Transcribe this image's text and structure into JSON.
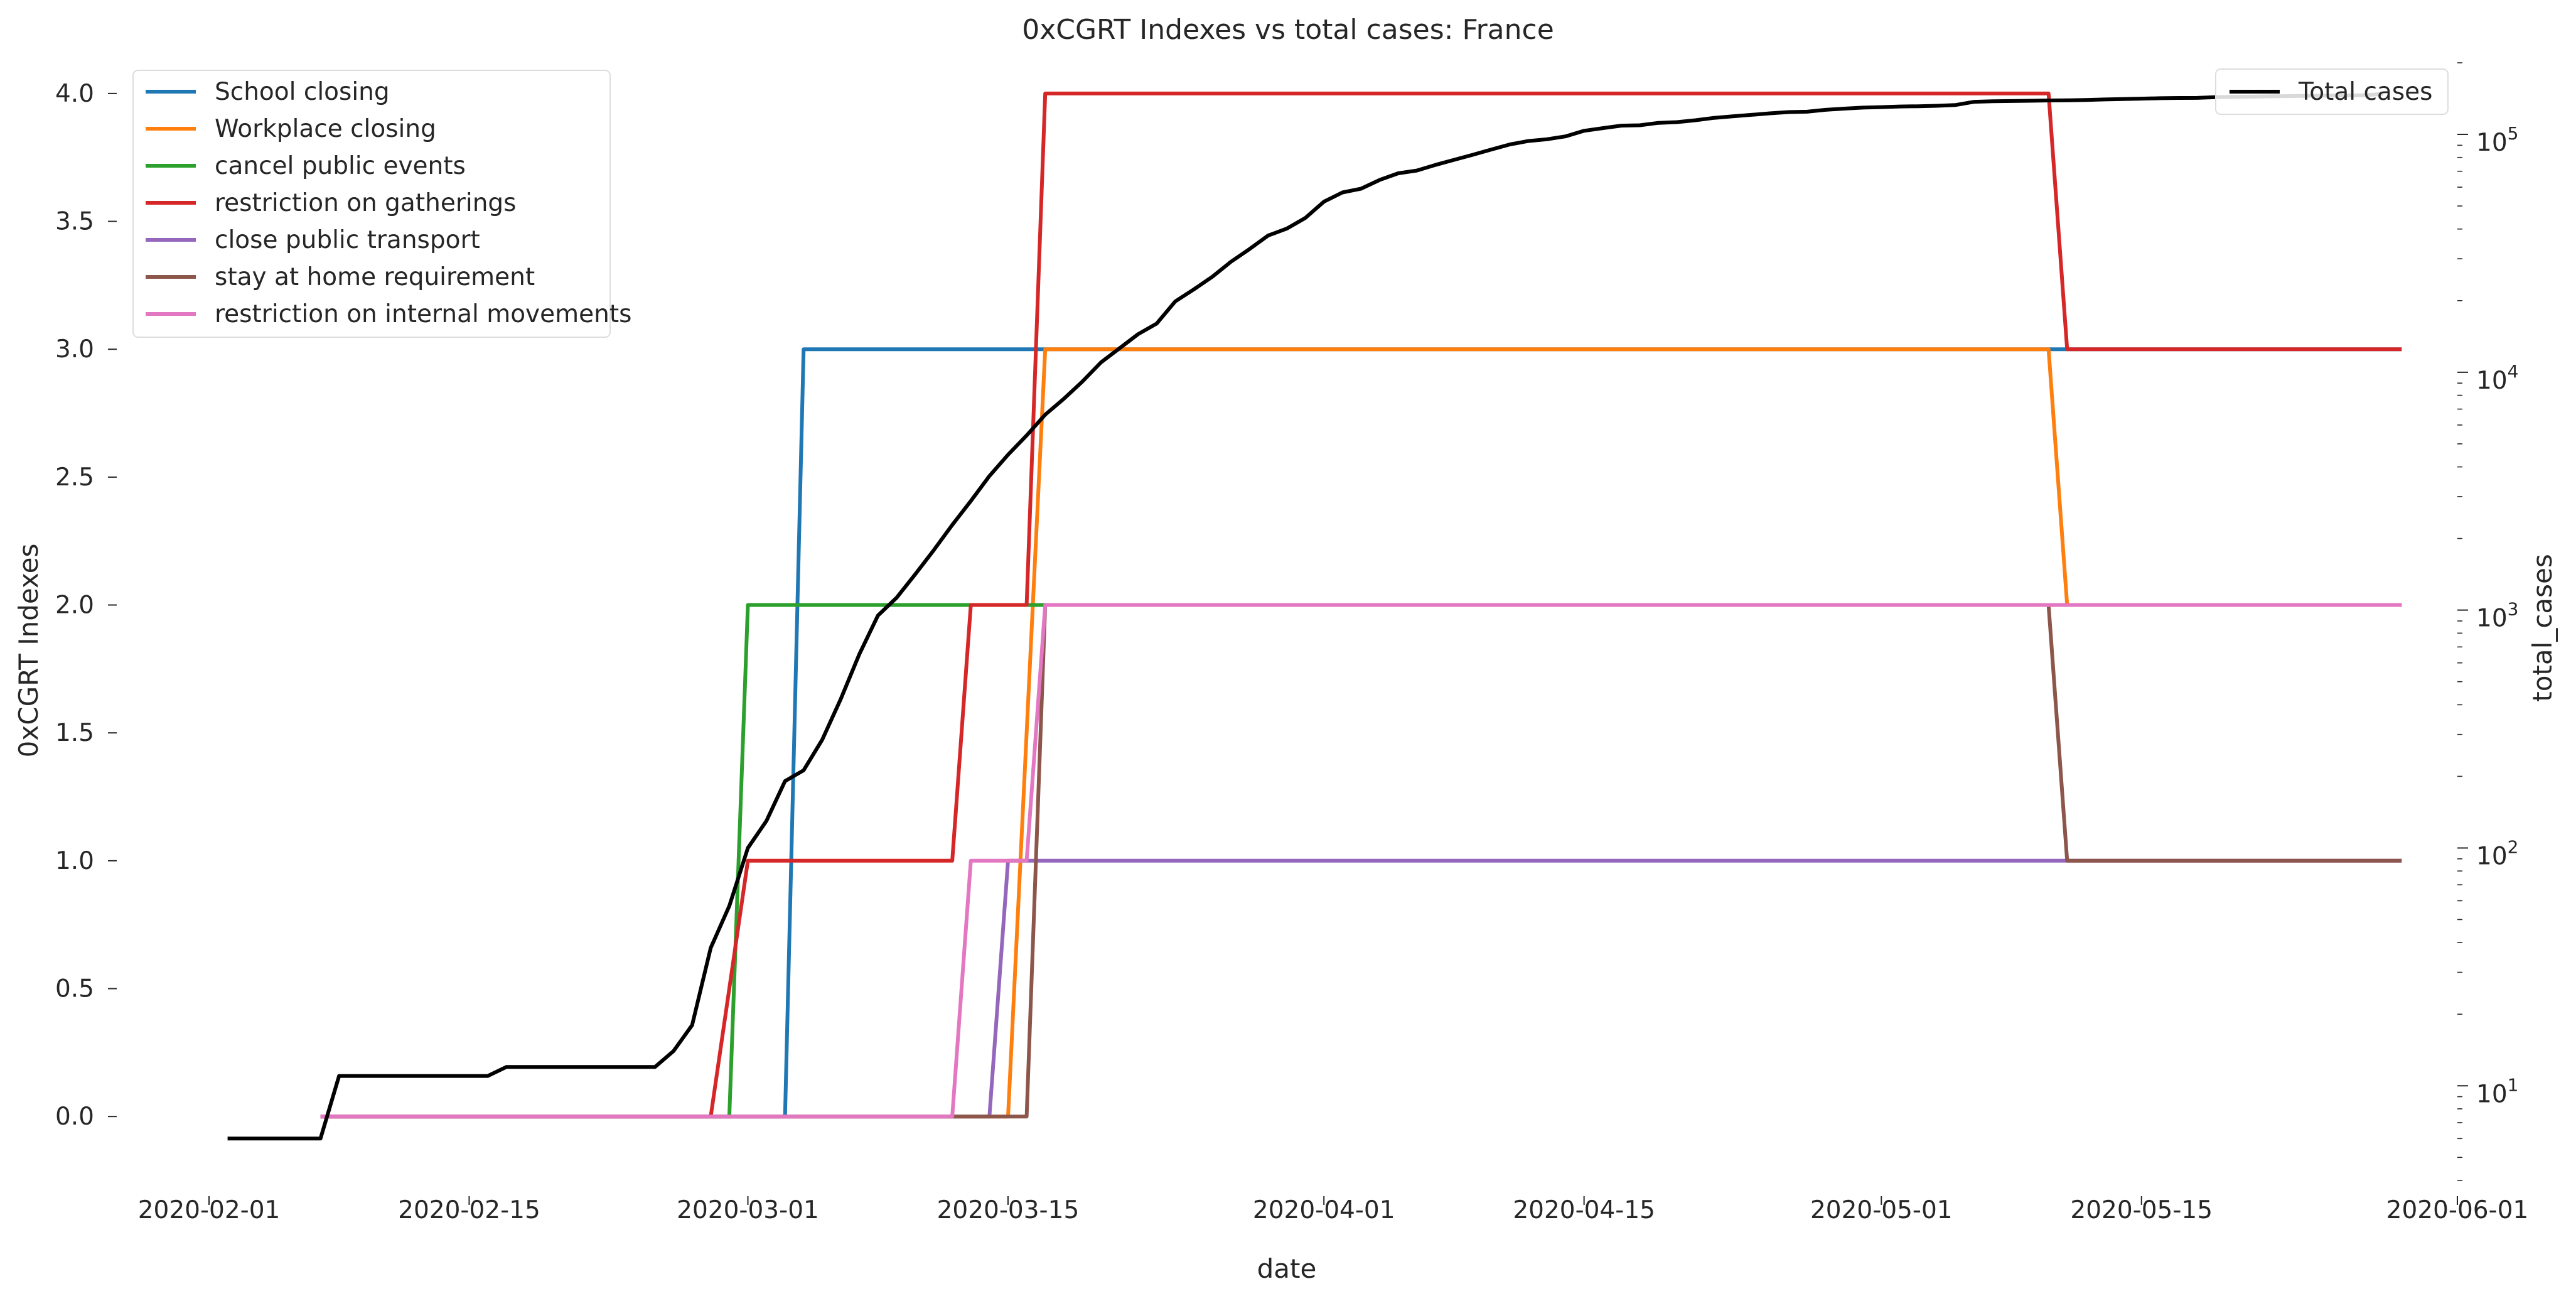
{
  "chart_data": {
    "type": "line",
    "title": "0xCGRT Indexes vs total cases:  France",
    "xlabel": "date",
    "ylabel_left": "0xCGRT Indexes",
    "ylabel_right": "total_cases",
    "x_ticks": [
      "2020-02-01",
      "2020-02-15",
      "2020-03-01",
      "2020-03-15",
      "2020-04-01",
      "2020-04-15",
      "2020-05-01",
      "2020-05-15",
      "2020-06-01"
    ],
    "x_range": [
      "2020-01-27",
      "2020-06-01"
    ],
    "y_left_ticks": [
      "0.0",
      "0.5",
      "1.0",
      "1.5",
      "2.0",
      "2.5",
      "3.0",
      "3.5",
      "4.0"
    ],
    "y_left_range": [
      -0.25,
      4.12
    ],
    "y_right_scale": "log",
    "y_right_range": [
      4,
      200000
    ],
    "y_right_major_ticks": [
      {
        "value": 10,
        "base": "10",
        "exp": "1"
      },
      {
        "value": 100,
        "base": "10",
        "exp": "2"
      },
      {
        "value": 1000,
        "base": "10",
        "exp": "3"
      },
      {
        "value": 10000,
        "base": "10",
        "exp": "4"
      },
      {
        "value": 100000,
        "base": "10",
        "exp": "5"
      }
    ],
    "grid": false,
    "legend_left_placement": "top-left",
    "legend_right_placement": "top-right",
    "series": [
      {
        "name": "School closing",
        "color": "#1f77b4",
        "axis": "left",
        "points": [
          [
            "2020-02-07",
            0
          ],
          [
            "2020-03-03",
            0
          ],
          [
            "2020-03-04",
            3
          ],
          [
            "2020-05-29",
            3
          ]
        ]
      },
      {
        "name": "Workplace closing",
        "color": "#ff7f0e",
        "axis": "left",
        "points": [
          [
            "2020-02-07",
            0
          ],
          [
            "2020-03-15",
            0
          ],
          [
            "2020-03-17",
            3
          ],
          [
            "2020-05-10",
            3
          ],
          [
            "2020-05-11",
            2
          ],
          [
            "2020-05-29",
            2
          ]
        ]
      },
      {
        "name": "cancel public events",
        "color": "#2ca02c",
        "axis": "left",
        "points": [
          [
            "2020-02-07",
            0
          ],
          [
            "2020-02-29",
            0
          ],
          [
            "2020-03-01",
            2
          ],
          [
            "2020-05-29",
            2
          ]
        ]
      },
      {
        "name": "restriction on gatherings",
        "color": "#d62728",
        "axis": "left",
        "points": [
          [
            "2020-02-07",
            0
          ],
          [
            "2020-02-28",
            0
          ],
          [
            "2020-03-01",
            1
          ],
          [
            "2020-03-12",
            1
          ],
          [
            "2020-03-13",
            2
          ],
          [
            "2020-03-16",
            2
          ],
          [
            "2020-03-17",
            4
          ],
          [
            "2020-05-10",
            4
          ],
          [
            "2020-05-11",
            3
          ],
          [
            "2020-05-29",
            3
          ]
        ]
      },
      {
        "name": "close public transport",
        "color": "#9467bd",
        "axis": "left",
        "points": [
          [
            "2020-02-07",
            0
          ],
          [
            "2020-03-14",
            0
          ],
          [
            "2020-03-15",
            1
          ],
          [
            "2020-05-29",
            1
          ]
        ]
      },
      {
        "name": "stay at home requirement",
        "color": "#8c564b",
        "axis": "left",
        "points": [
          [
            "2020-02-07",
            0
          ],
          [
            "2020-03-16",
            0
          ],
          [
            "2020-03-17",
            2
          ],
          [
            "2020-05-10",
            2
          ],
          [
            "2020-05-11",
            1
          ],
          [
            "2020-05-29",
            1
          ]
        ]
      },
      {
        "name": "restriction on internal movements",
        "color": "#e377c2",
        "axis": "left",
        "points": [
          [
            "2020-02-07",
            0
          ],
          [
            "2020-03-12",
            0
          ],
          [
            "2020-03-13",
            1
          ],
          [
            "2020-03-16",
            1
          ],
          [
            "2020-03-17",
            2
          ],
          [
            "2020-05-29",
            2
          ]
        ]
      },
      {
        "name": "Total cases",
        "color": "#000000",
        "axis": "right",
        "points": [
          [
            "2020-02-02",
            6
          ],
          [
            "2020-02-07",
            6
          ],
          [
            "2020-02-08",
            11
          ],
          [
            "2020-02-16",
            11
          ],
          [
            "2020-02-17",
            12
          ],
          [
            "2020-02-25",
            12
          ],
          [
            "2020-02-26",
            14
          ],
          [
            "2020-02-27",
            18
          ],
          [
            "2020-02-28",
            38
          ],
          [
            "2020-02-29",
            57
          ],
          [
            "2020-03-01",
            100
          ],
          [
            "2020-03-02",
            130
          ],
          [
            "2020-03-03",
            191
          ],
          [
            "2020-03-04",
            212
          ],
          [
            "2020-03-05",
            285
          ],
          [
            "2020-03-06",
            423
          ],
          [
            "2020-03-07",
            653
          ],
          [
            "2020-03-08",
            949
          ],
          [
            "2020-03-09",
            1126
          ],
          [
            "2020-03-10",
            1412
          ],
          [
            "2020-03-11",
            1784
          ],
          [
            "2020-03-12",
            2281
          ],
          [
            "2020-03-13",
            2876
          ],
          [
            "2020-03-14",
            3661
          ],
          [
            "2020-03-15",
            4499
          ],
          [
            "2020-03-16",
            5423
          ],
          [
            "2020-03-17",
            6633
          ],
          [
            "2020-03-18",
            7730
          ],
          [
            "2020-03-19",
            9134
          ],
          [
            "2020-03-20",
            10995
          ],
          [
            "2020-03-21",
            12612
          ],
          [
            "2020-03-22",
            14459
          ],
          [
            "2020-03-23",
            16018
          ],
          [
            "2020-03-24",
            19856
          ],
          [
            "2020-03-25",
            22302
          ],
          [
            "2020-03-26",
            25233
          ],
          [
            "2020-03-27",
            29155
          ],
          [
            "2020-03-28",
            32964
          ],
          [
            "2020-03-29",
            37575
          ],
          [
            "2020-03-30",
            40174
          ],
          [
            "2020-03-31",
            44550
          ],
          [
            "2020-04-01",
            52128
          ],
          [
            "2020-04-02",
            56989
          ],
          [
            "2020-04-03",
            59105
          ],
          [
            "2020-04-04",
            64338
          ],
          [
            "2020-04-05",
            68605
          ],
          [
            "2020-04-06",
            70478
          ],
          [
            "2020-04-07",
            74390
          ],
          [
            "2020-04-08",
            78167
          ],
          [
            "2020-04-09",
            82048
          ],
          [
            "2020-04-10",
            86334
          ],
          [
            "2020-04-11",
            90676
          ],
          [
            "2020-04-12",
            93790
          ],
          [
            "2020-04-13",
            95403
          ],
          [
            "2020-04-14",
            98076
          ],
          [
            "2020-04-15",
            103573
          ],
          [
            "2020-04-16",
            106206
          ],
          [
            "2020-04-17",
            108847
          ],
          [
            "2020-04-18",
            109252
          ],
          [
            "2020-04-19",
            111821
          ],
          [
            "2020-04-20",
            112606
          ],
          [
            "2020-04-21",
            114657
          ],
          [
            "2020-04-22",
            117324
          ],
          [
            "2020-04-23",
            119151
          ],
          [
            "2020-04-24",
            120804
          ],
          [
            "2020-04-25",
            122577
          ],
          [
            "2020-04-26",
            124114
          ],
          [
            "2020-04-27",
            124575
          ],
          [
            "2020-04-28",
            126835
          ],
          [
            "2020-04-29",
            128339
          ],
          [
            "2020-04-30",
            129581
          ],
          [
            "2020-05-01",
            130185
          ],
          [
            "2020-05-02",
            130979
          ],
          [
            "2020-05-03",
            131287
          ],
          [
            "2020-05-04",
            131863
          ],
          [
            "2020-05-05",
            132967
          ],
          [
            "2020-05-06",
            137150
          ],
          [
            "2020-05-07",
            137779
          ],
          [
            "2020-05-08",
            138161
          ],
          [
            "2020-05-09",
            138421
          ],
          [
            "2020-05-10",
            138854
          ],
          [
            "2020-05-11",
            139063
          ],
          [
            "2020-05-12",
            139519
          ],
          [
            "2020-05-13",
            140227
          ],
          [
            "2020-05-14",
            140734
          ],
          [
            "2020-05-15",
            141356
          ],
          [
            "2020-05-16",
            141919
          ],
          [
            "2020-05-17",
            142291
          ],
          [
            "2020-05-18",
            142411
          ],
          [
            "2020-05-19",
            143427
          ],
          [
            "2020-05-20",
            143845
          ],
          [
            "2020-05-21",
            144163
          ],
          [
            "2020-05-22",
            144556
          ],
          [
            "2020-05-23",
            144921
          ],
          [
            "2020-05-24",
            145279
          ],
          [
            "2020-05-25",
            145555
          ],
          [
            "2020-05-26",
            145746
          ],
          [
            "2020-05-27",
            145959
          ],
          [
            "2020-05-28",
            148043
          ]
        ]
      }
    ]
  }
}
